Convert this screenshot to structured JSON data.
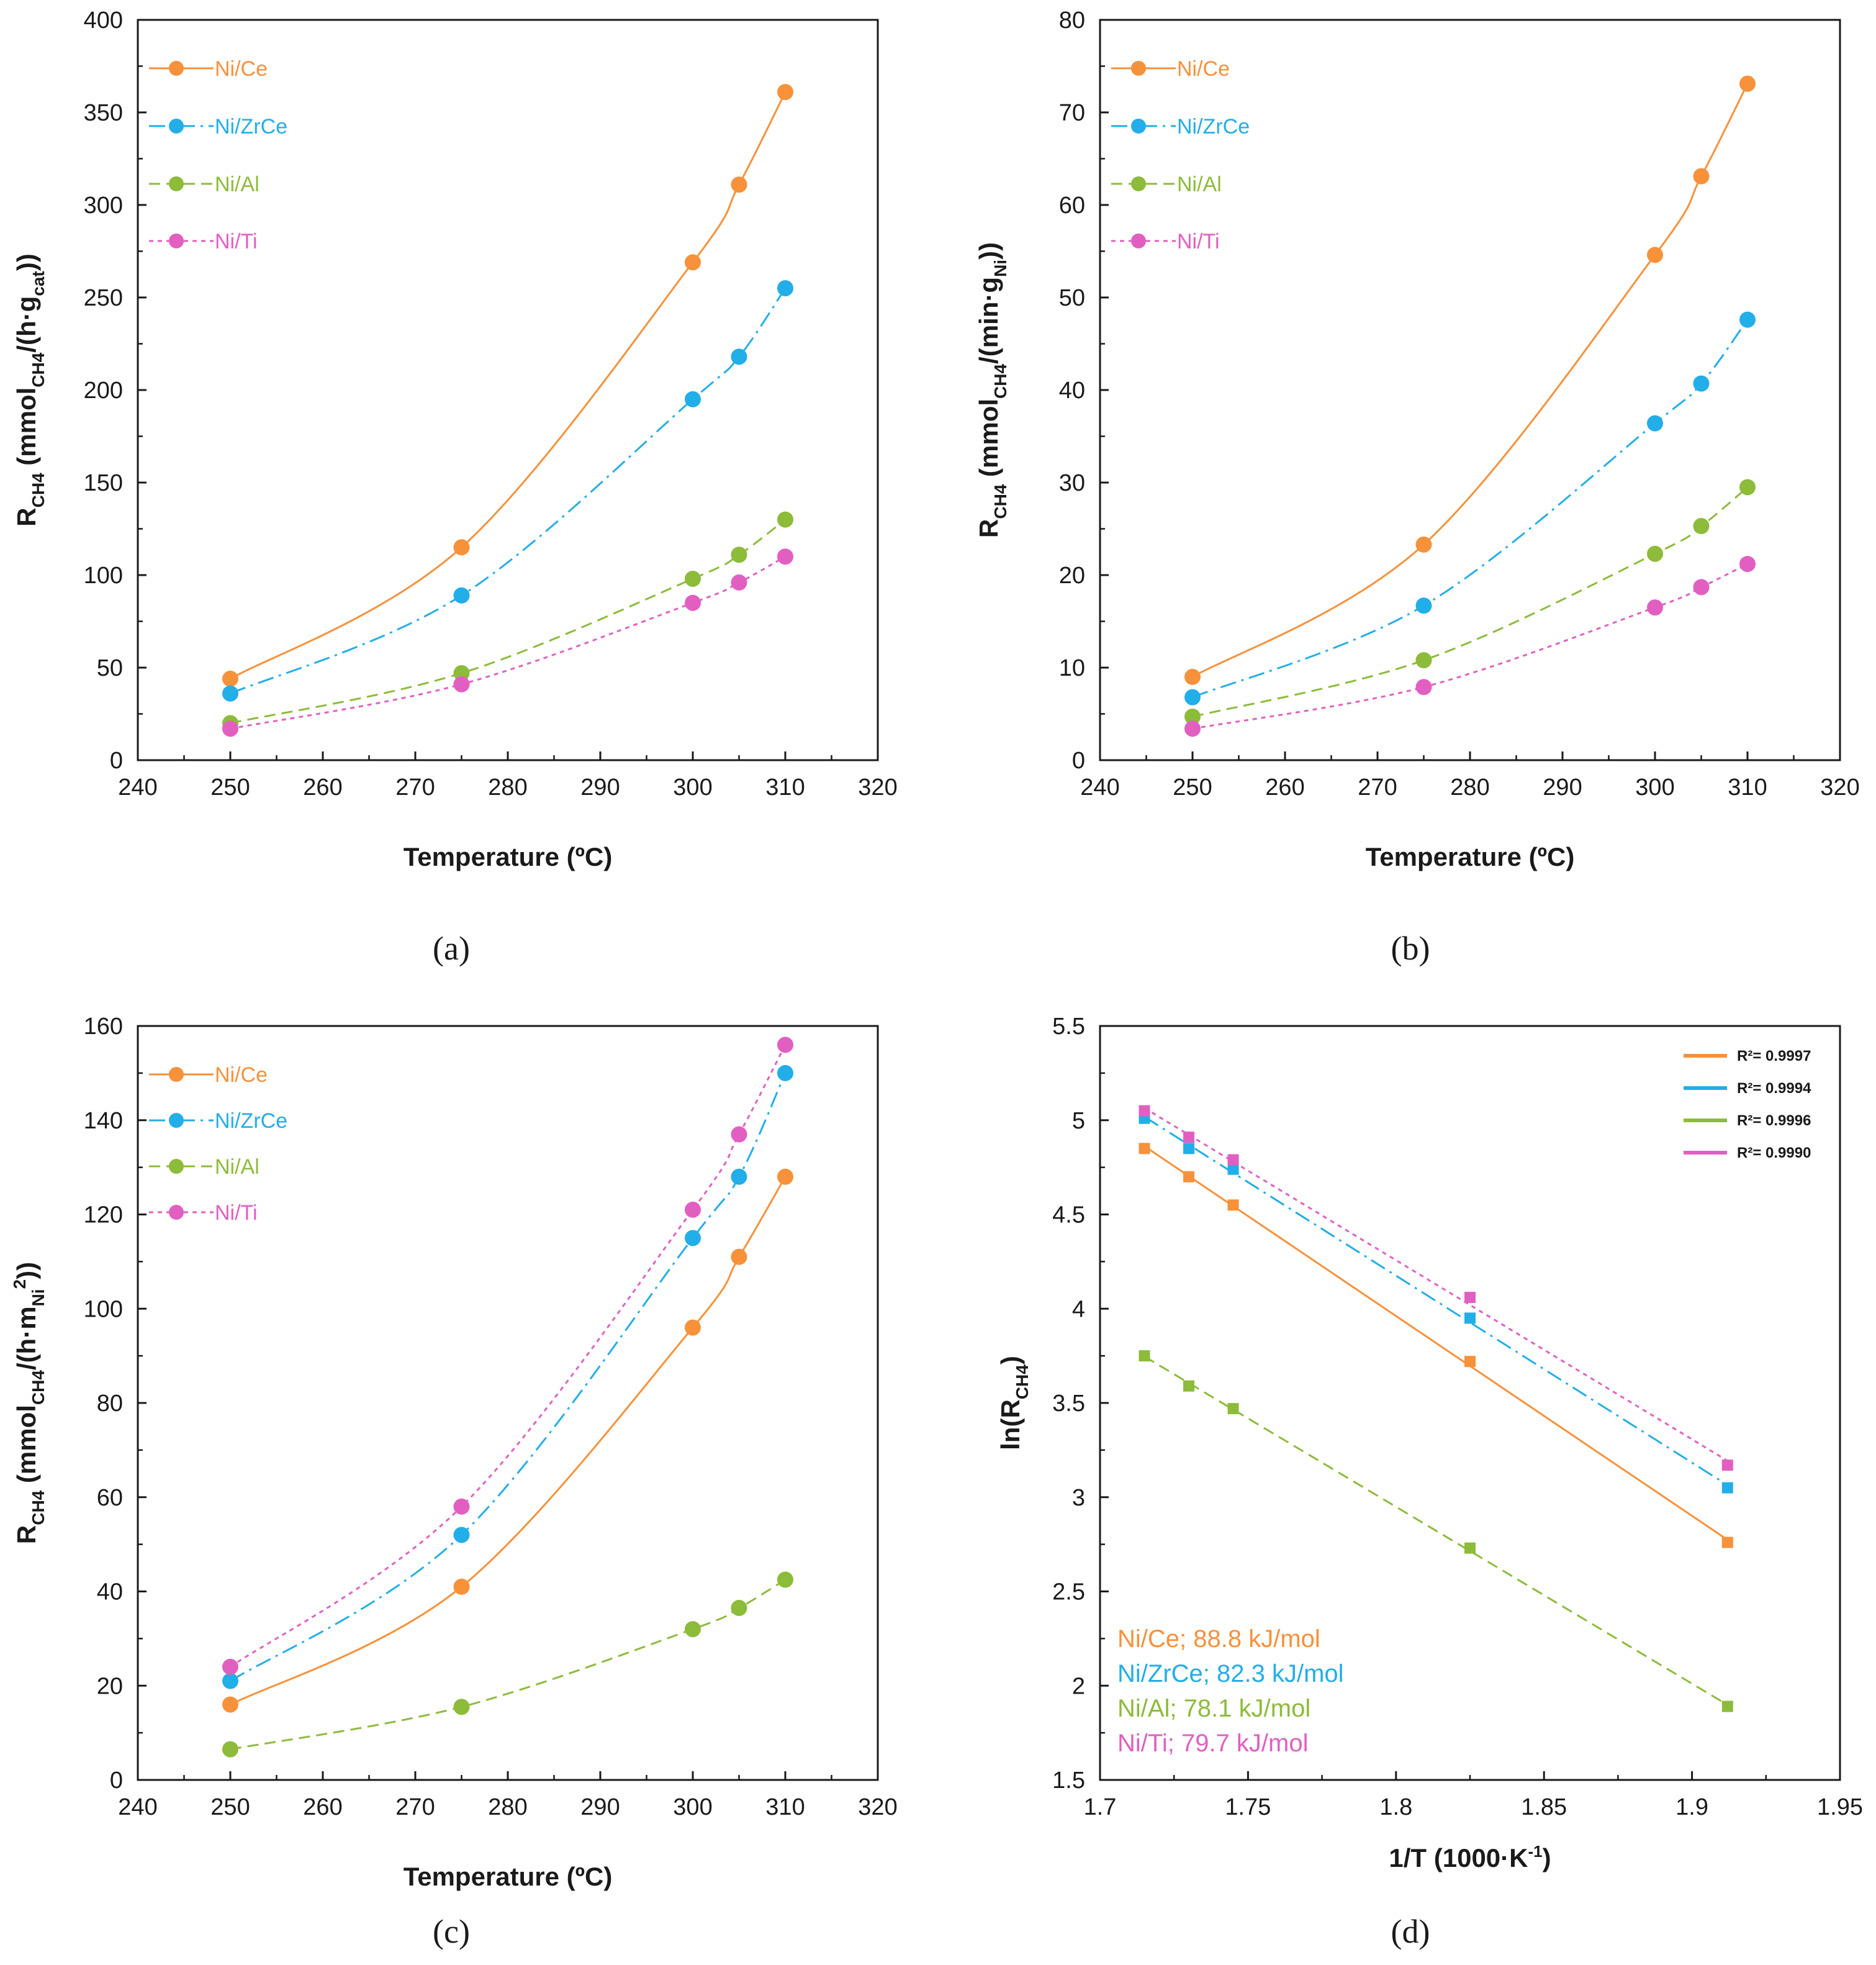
{
  "colors": {
    "Ni/Ce": "#f7913a",
    "Ni/ZrCe": "#22aee8",
    "Ni/Al": "#8dbb3a",
    "Ni/Ti": "#e25fc2"
  },
  "chart_data": [
    {
      "id": "a",
      "type": "scatter",
      "caption": "(a)",
      "xlabel": "Temperature (ºC)",
      "ylabel": "R_CH4 (mmol_CH4/(h·g_cat))",
      "ylabel_parts": {
        "main": "R",
        "sub": "CH4",
        "mid": " (mmol",
        "sub2": "CH4",
        "mid2": "/(h·g",
        "sub3": "cat",
        "end": "))"
      },
      "xlim": [
        240,
        320
      ],
      "ylim": [
        0,
        400
      ],
      "xticks": [
        240,
        250,
        260,
        270,
        280,
        290,
        300,
        310,
        320
      ],
      "yticks": [
        0,
        50,
        100,
        150,
        200,
        250,
        300,
        350,
        400
      ],
      "x": [
        250,
        275,
        300,
        305,
        310
      ],
      "legend": [
        "Ni/Ce",
        "Ni/ZrCe",
        "Ni/Al",
        "Ni/Ti"
      ],
      "series": [
        {
          "name": "Ni/Ce",
          "values": [
            44,
            115,
            269,
            311,
            361
          ],
          "line": "solid"
        },
        {
          "name": "Ni/ZrCe",
          "values": [
            36,
            89,
            195,
            218,
            255
          ],
          "line": "dashdot"
        },
        {
          "name": "Ni/Al",
          "values": [
            20,
            47,
            98,
            111,
            130
          ],
          "line": "dashed"
        },
        {
          "name": "Ni/Ti",
          "values": [
            17,
            41,
            85,
            96,
            110
          ],
          "line": "dotted"
        }
      ]
    },
    {
      "id": "b",
      "type": "scatter",
      "caption": "(b)",
      "xlabel": "Temperature (ºC)",
      "ylabel": "R_CH4 (mmol_CH4/(min·g_Ni))",
      "ylabel_parts": {
        "main": "R",
        "sub": "CH4",
        "mid": " (mmol",
        "sub2": "CH4",
        "mid2": "/(min·g",
        "sub3": "Ni",
        "end": "))"
      },
      "xlim": [
        240,
        320
      ],
      "ylim": [
        0,
        80
      ],
      "xticks": [
        240,
        250,
        260,
        270,
        280,
        290,
        300,
        310,
        320
      ],
      "yticks": [
        0,
        10,
        20,
        30,
        40,
        50,
        60,
        70,
        80
      ],
      "x": [
        250,
        275,
        300,
        305,
        310
      ],
      "legend": [
        "Ni/Ce",
        "Ni/ZrCe",
        "Ni/Al",
        "Ni/Ti"
      ],
      "series": [
        {
          "name": "Ni/Ce",
          "values": [
            9.0,
            23.3,
            54.6,
            63.1,
            73.1
          ],
          "line": "solid"
        },
        {
          "name": "Ni/ZrCe",
          "values": [
            6.8,
            16.7,
            36.4,
            40.7,
            47.6
          ],
          "line": "dashdot"
        },
        {
          "name": "Ni/Al",
          "values": [
            4.7,
            10.8,
            22.3,
            25.3,
            29.5
          ],
          "line": "dashed"
        },
        {
          "name": "Ni/Ti",
          "values": [
            3.4,
            7.9,
            16.5,
            18.7,
            21.2
          ],
          "line": "dotted"
        }
      ]
    },
    {
      "id": "c",
      "type": "scatter",
      "caption": "(c)",
      "xlabel": "Temperature (ºC)",
      "ylabel": "R_CH4 (mmol_CH4/(h·m_Ni^2))",
      "ylabel_parts": {
        "main": "R",
        "sub": "CH4",
        "mid": " (mmol",
        "sub2": "CH4",
        "mid2": "/(h·m",
        "sub3": "Ni",
        "sup3": "2",
        "end": "))"
      },
      "xlim": [
        240,
        320
      ],
      "ylim": [
        0,
        160
      ],
      "xticks": [
        240,
        250,
        260,
        270,
        280,
        290,
        300,
        310,
        320
      ],
      "yticks": [
        0,
        20,
        40,
        60,
        80,
        100,
        120,
        140,
        160
      ],
      "x": [
        250,
        275,
        300,
        305,
        310
      ],
      "legend": [
        "Ni/Ce",
        "Ni/ZrCe",
        "Ni/Al",
        "Ni/Ti"
      ],
      "series": [
        {
          "name": "Ni/Ce",
          "values": [
            16,
            41,
            96,
            111,
            128
          ],
          "line": "solid"
        },
        {
          "name": "Ni/ZrCe",
          "values": [
            21,
            52,
            115,
            128,
            150
          ],
          "line": "dashdot"
        },
        {
          "name": "Ni/Al",
          "values": [
            6.5,
            15.5,
            32,
            36.5,
            42.5
          ],
          "line": "dashed"
        },
        {
          "name": "Ni/Ti",
          "values": [
            24,
            58,
            121,
            137,
            156
          ],
          "line": "dotted"
        }
      ]
    },
    {
      "id": "d",
      "type": "scatter",
      "caption": "(d)",
      "xlabel": "1/T (1000·K⁻¹)",
      "ylabel": "ln(R_CH4)",
      "ylabel_parts": {
        "main": "ln(R",
        "sub": "CH4",
        "end": ")"
      },
      "xlim": [
        1.7,
        1.95
      ],
      "ylim": [
        1.5,
        5.5
      ],
      "xticks": [
        1.7,
        1.75,
        1.8,
        1.85,
        1.9,
        1.95
      ],
      "xtick_labels": [
        "1.7",
        "1.75",
        "1.8",
        "1.85",
        "1.9",
        "1.95"
      ],
      "yticks": [
        1.5,
        2,
        2.5,
        3,
        3.5,
        4,
        4.5,
        5,
        5.5
      ],
      "ytick_labels": [
        "1.5",
        "2",
        "2.5",
        "3",
        "3.5",
        "4",
        "4.5",
        "5",
        "5.5"
      ],
      "x": [
        1.715,
        1.73,
        1.745,
        1.825,
        1.912
      ],
      "legend": [
        "R²= 0.9997",
        "R²= 0.9994",
        "R²= 0.9996",
        "R²= 0.9990"
      ],
      "series": [
        {
          "name": "Ni/Ce",
          "values": [
            4.85,
            4.7,
            4.55,
            3.72,
            2.76
          ],
          "line": "solid",
          "r2": "R²= 0.9997"
        },
        {
          "name": "Ni/ZrCe",
          "values": [
            5.01,
            4.85,
            4.74,
            3.95,
            3.05
          ],
          "line": "dashdot",
          "r2": "R²= 0.9994"
        },
        {
          "name": "Ni/Al",
          "values": [
            3.75,
            3.59,
            3.47,
            2.73,
            1.89
          ],
          "line": "dashed",
          "r2": "R²= 0.9996"
        },
        {
          "name": "Ni/Ti",
          "values": [
            5.05,
            4.91,
            4.79,
            4.06,
            3.17
          ],
          "line": "dotted",
          "r2": "R²= 0.9990"
        }
      ],
      "annotations": [
        {
          "text": "Ni/Ce; 88.8 kJ/mol",
          "series": "Ni/Ce"
        },
        {
          "text": "Ni/ZrCe; 82.3 kJ/mol",
          "series": "Ni/ZrCe"
        },
        {
          "text": "Ni/Al; 78.1 kJ/mol",
          "series": "Ni/Al"
        },
        {
          "text": "Ni/Ti; 79.7 kJ/mol",
          "series": "Ni/Ti"
        }
      ]
    }
  ]
}
